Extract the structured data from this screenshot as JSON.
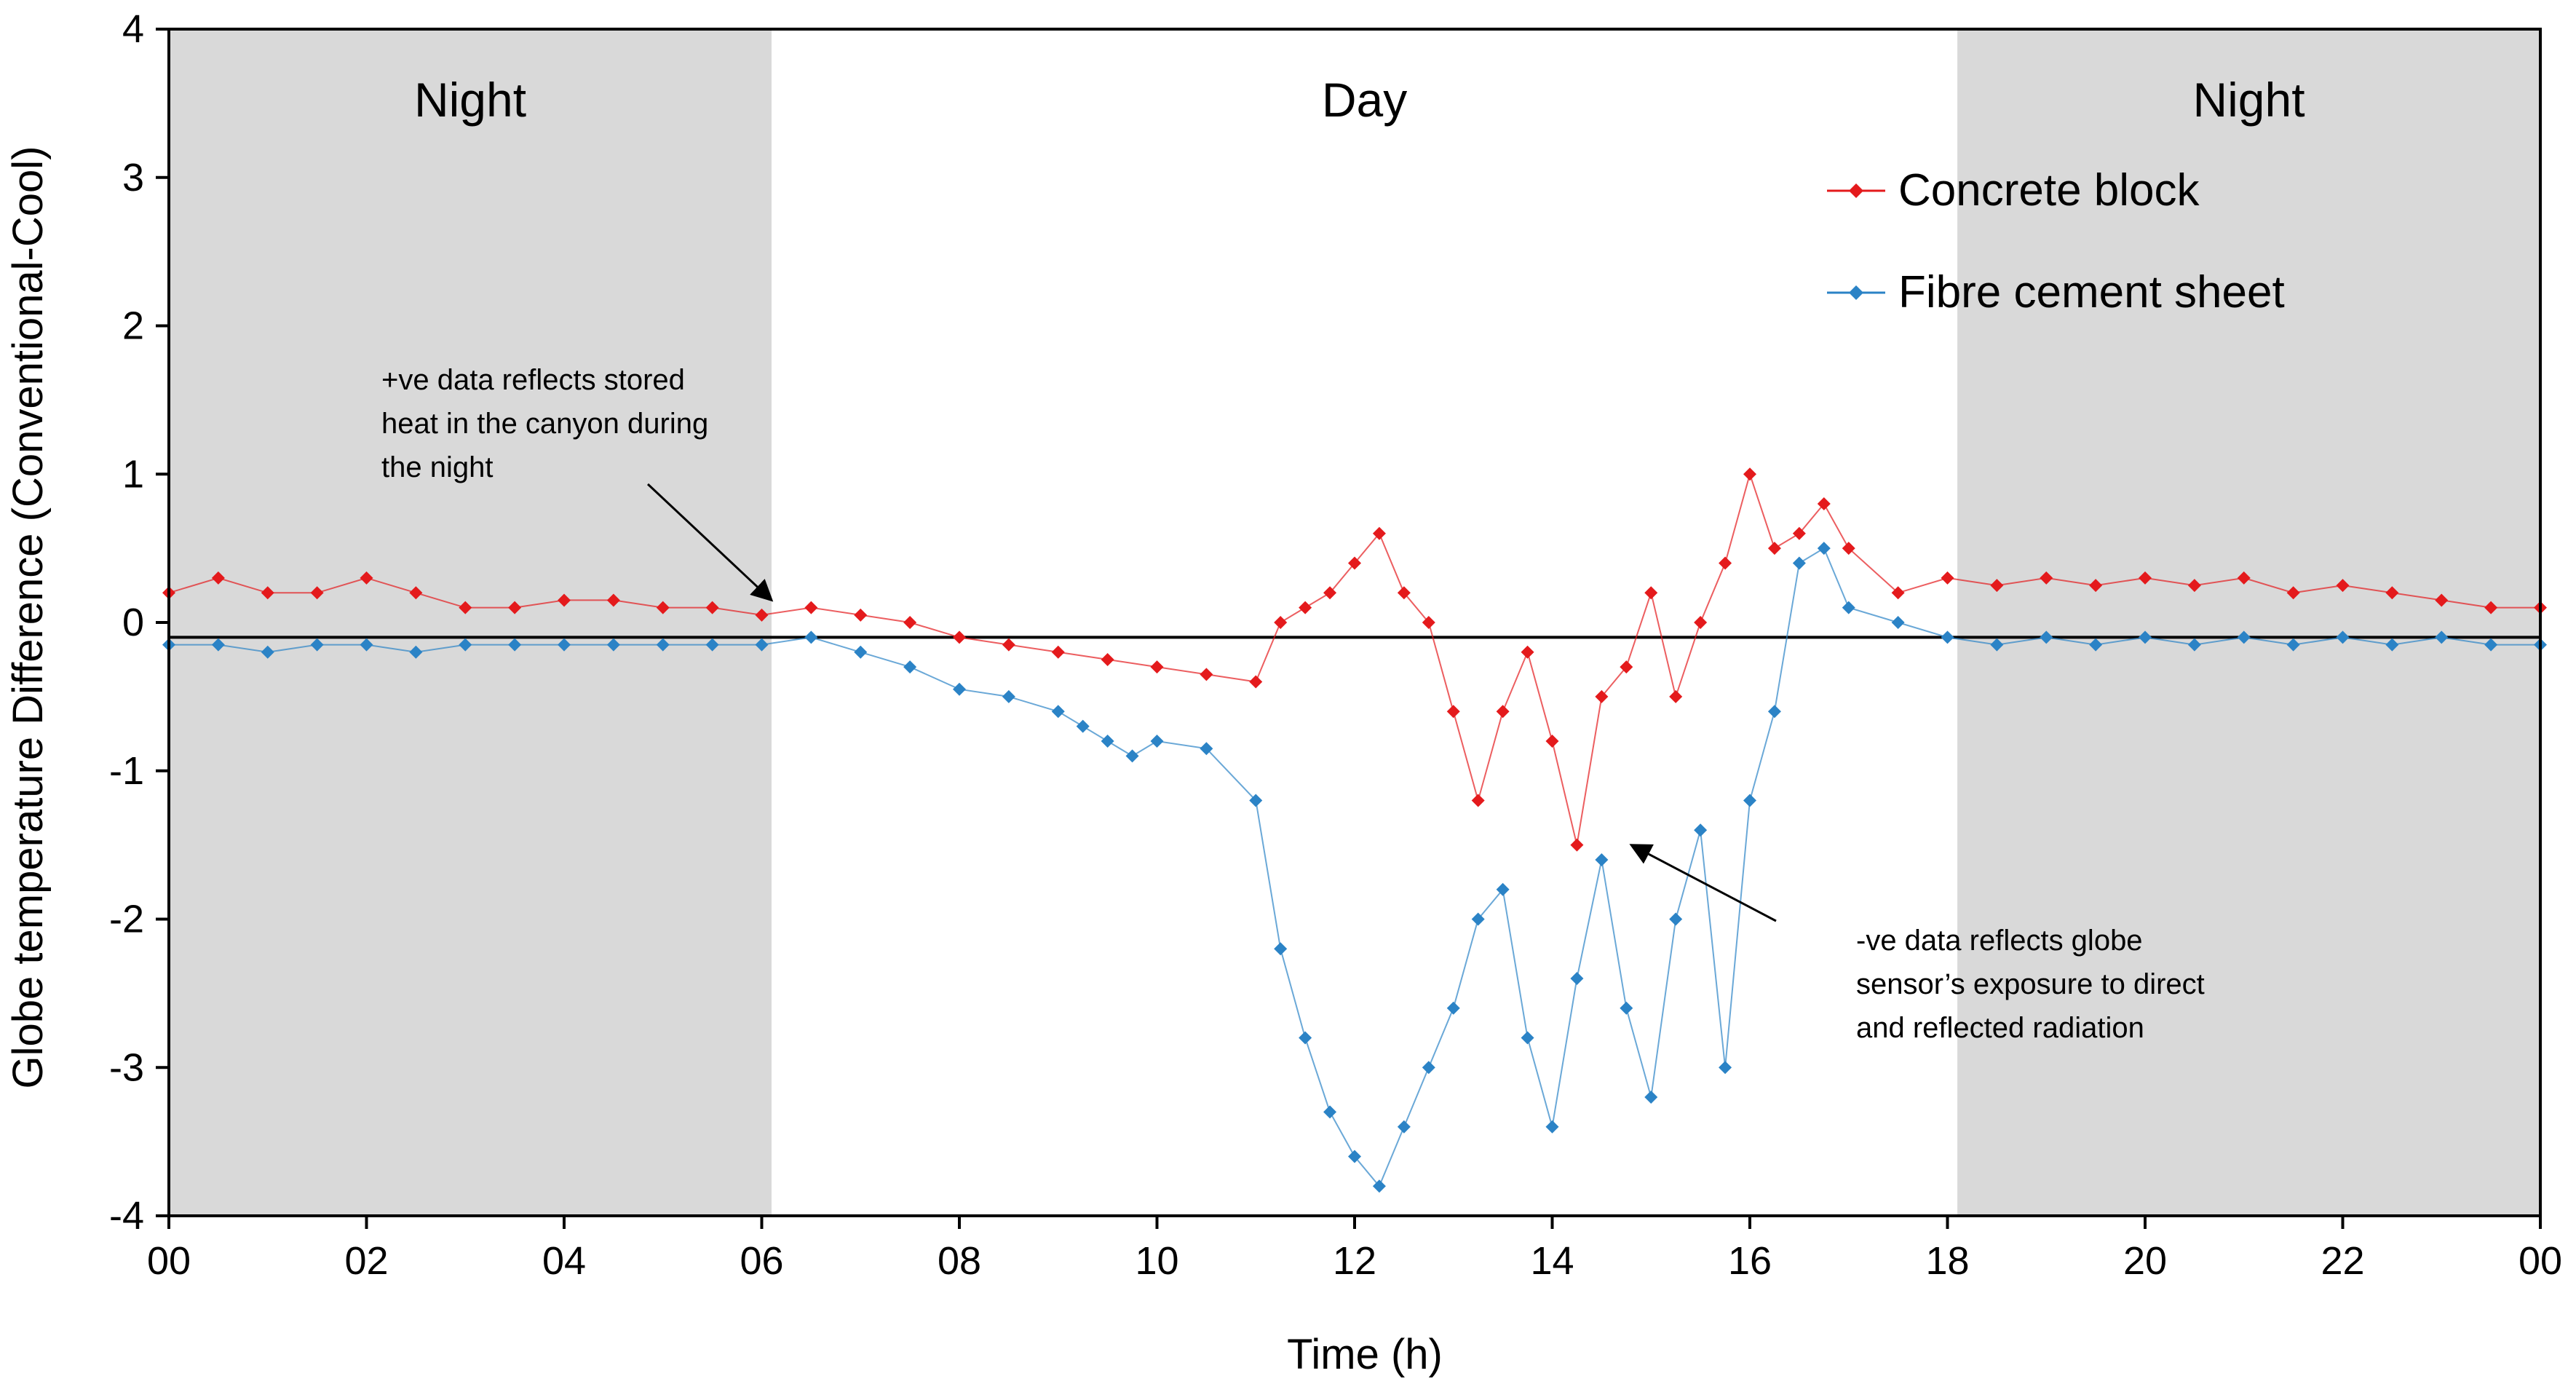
{
  "chart_data": {
    "type": "scatter",
    "title": "",
    "xlabel": "Time (h)",
    "ylabel": "Globe temperature Difference (Conventional-Cool)",
    "xlim": [
      0,
      24
    ],
    "ylim": [
      -4,
      4
    ],
    "x_tick_labels": [
      "00",
      "02",
      "04",
      "06",
      "08",
      "10",
      "12",
      "14",
      "16",
      "18",
      "20",
      "22",
      "00"
    ],
    "y_tick_labels": [
      "4",
      "3",
      "2",
      "1",
      "0",
      "-1",
      "-2",
      "-3",
      "-4"
    ],
    "reference_line_y": -0.1,
    "periods": [
      {
        "label": "Night",
        "from": 0,
        "to": 6.1,
        "color": "#d9d9d9"
      },
      {
        "label": "Day",
        "from": 6.1,
        "to": 18.1,
        "color": "#ffffff"
      },
      {
        "label": "Night",
        "from": 18.1,
        "to": 24,
        "color": "#d9d9d9"
      }
    ],
    "legend_position": "top-right",
    "series": [
      {
        "name": "Concrete block",
        "color": "#e41a1c",
        "x": [
          0,
          0.5,
          1,
          1.5,
          2,
          2.5,
          3,
          3.5,
          4,
          4.5,
          5,
          5.5,
          6,
          6.5,
          7,
          7.5,
          8,
          8.5,
          9,
          9.5,
          10,
          10.5,
          11,
          11.25,
          11.5,
          11.75,
          12,
          12.25,
          12.5,
          12.75,
          13,
          13.25,
          13.5,
          13.75,
          14,
          14.25,
          14.5,
          14.75,
          15,
          15.25,
          15.5,
          15.75,
          16,
          16.25,
          16.5,
          16.75,
          17,
          17.5,
          18,
          18.5,
          19,
          19.5,
          20,
          20.5,
          21,
          21.5,
          22,
          22.5,
          23,
          23.5,
          24
        ],
        "y": [
          0.2,
          0.3,
          0.2,
          0.2,
          0.3,
          0.2,
          0.1,
          0.1,
          0.15,
          0.15,
          0.1,
          0.1,
          0.05,
          0.1,
          0.05,
          0,
          -0.1,
          -0.15,
          -0.2,
          -0.25,
          -0.3,
          -0.35,
          -0.4,
          0,
          0.1,
          0.2,
          0.4,
          0.6,
          0.2,
          0,
          -0.6,
          -1.2,
          -0.6,
          -0.2,
          -0.8,
          -1.5,
          -0.5,
          -0.3,
          0.2,
          -0.5,
          0,
          0.4,
          1.0,
          0.5,
          0.6,
          0.8,
          0.5,
          0.2,
          0.3,
          0.25,
          0.3,
          0.25,
          0.3,
          0.25,
          0.3,
          0.2,
          0.25,
          0.2,
          0.15,
          0.1,
          0.1
        ]
      },
      {
        "name": "Fibre cement sheet",
        "color": "#2b83c6",
        "x": [
          0,
          0.5,
          1,
          1.5,
          2,
          2.5,
          3,
          3.5,
          4,
          4.5,
          5,
          5.5,
          6,
          6.5,
          7,
          7.5,
          8,
          8.5,
          9,
          9.25,
          9.5,
          9.75,
          10,
          10.5,
          11,
          11.25,
          11.5,
          11.75,
          12,
          12.25,
          12.5,
          12.75,
          13,
          13.25,
          13.5,
          13.75,
          14,
          14.25,
          14.5,
          14.75,
          15,
          15.25,
          15.5,
          15.75,
          16,
          16.25,
          16.5,
          16.75,
          17,
          17.5,
          18,
          18.5,
          19,
          19.5,
          20,
          20.5,
          21,
          21.5,
          22,
          22.5,
          23,
          23.5,
          24
        ],
        "y": [
          -0.15,
          -0.15,
          -0.2,
          -0.15,
          -0.15,
          -0.2,
          -0.15,
          -0.15,
          -0.15,
          -0.15,
          -0.15,
          -0.15,
          -0.15,
          -0.1,
          -0.2,
          -0.3,
          -0.45,
          -0.5,
          -0.6,
          -0.7,
          -0.8,
          -0.9,
          -0.8,
          -0.85,
          -1.2,
          -2.2,
          -2.8,
          -3.3,
          -3.6,
          -3.8,
          -3.4,
          -3.0,
          -2.6,
          -2.0,
          -1.8,
          -2.8,
          -3.4,
          -2.4,
          -1.6,
          -2.6,
          -3.2,
          -2.0,
          -1.4,
          -3.0,
          -1.2,
          -0.6,
          0.4,
          0.5,
          0.1,
          0,
          -0.1,
          -0.15,
          -0.1,
          -0.15,
          -0.1,
          -0.15,
          -0.1,
          -0.15,
          -0.1,
          -0.15,
          -0.1,
          -0.15,
          -0.15
        ]
      }
    ],
    "annotations": [
      {
        "lines": [
          "+ve data reflects stored",
          "heat in the canyon during",
          "the night"
        ],
        "target_x": 6.1,
        "target_y": 0.15
      },
      {
        "lines": [
          "-ve data reflects globe",
          "sensor’s exposure to direct",
          "and reflected radiation"
        ],
        "target_x": 14.8,
        "target_y": -1.5
      }
    ]
  }
}
